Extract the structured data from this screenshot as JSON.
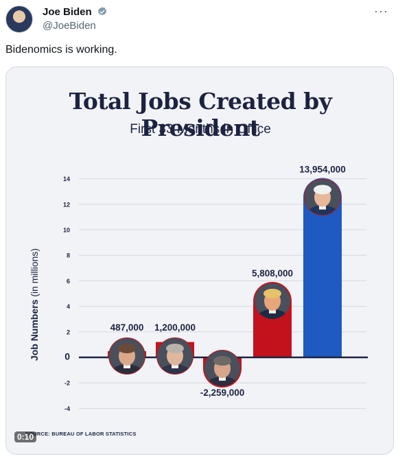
{
  "tweet": {
    "author_name": "Joe Biden",
    "handle": "@JoeBiden",
    "text": "Bidenomics is working.",
    "video_timer": "0:10"
  },
  "colors": {
    "bar_positive_red": "#c4121c",
    "bar_biden_blue": "#1e5ac1",
    "title_navy": "#1c2340",
    "chart_background": "#f2f3f7",
    "verified_blue": "#1d9bf0"
  },
  "chart_data": {
    "type": "bar",
    "title": "Total Jobs Created by President",
    "subtitle": "First 33 Months in Office",
    "ylabel_main": "Job Numbers",
    "ylabel_unit": "(in millions)",
    "xlabel": "",
    "ylim": [
      -4.5,
      14.8
    ],
    "yticks": [
      -4,
      -2,
      0,
      2,
      4,
      6,
      8,
      10,
      12,
      14
    ],
    "grid": true,
    "source": "SOURCE: BUREAU OF LABOR STATISTICS",
    "bars": [
      {
        "label": "487,000",
        "value": 0.487,
        "color": "#c4121c",
        "portrait": "reagan"
      },
      {
        "label": "1,200,000",
        "value": 1.2,
        "color": "#c4121c",
        "portrait": "bush-sr"
      },
      {
        "label": "-2,259,000",
        "value": -2.259,
        "color": "#c4121c",
        "portrait": "bush-jr"
      },
      {
        "label": "5,808,000",
        "value": 5.808,
        "color": "#c4121c",
        "portrait": "trump"
      },
      {
        "label": "13,954,000",
        "value": 13.954,
        "color": "#1e5ac1",
        "portrait": "biden"
      }
    ]
  }
}
